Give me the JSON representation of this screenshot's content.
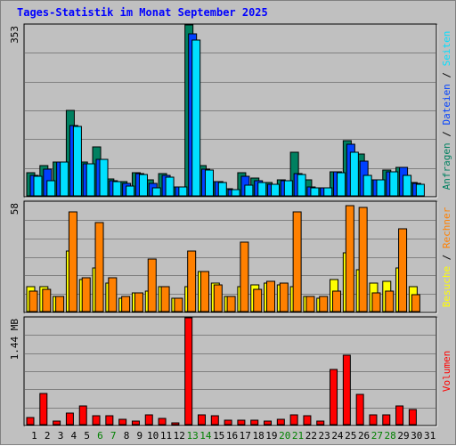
{
  "title": "Tages-Statistik im Monat September 2025",
  "colors": {
    "anfragen": "#008060",
    "dateien": "#0040ff",
    "seiten": "#00e0ff",
    "besuche": "#ffff00",
    "rechner": "#ff8000",
    "volumen": "#ff0000",
    "weekend": "#008000",
    "weekday": "#000000",
    "separator": "#000000"
  },
  "chart_data": [
    {
      "type": "bar",
      "panel": "hits",
      "ytick_label": "353",
      "ymax": 353,
      "legend": [
        "Anfragen",
        "/",
        "Dateien",
        "/",
        "Seiten"
      ],
      "legend_colors": [
        "anfragen",
        "separator",
        "dateien",
        "separator",
        "seiten"
      ],
      "categories": [
        "1",
        "2",
        "3",
        "4",
        "5",
        "6",
        "7",
        "8",
        "9",
        "10",
        "11",
        "12",
        "13",
        "14",
        "15",
        "16",
        "17",
        "18",
        "19",
        "20",
        "21",
        "22",
        "23",
        "24",
        "25",
        "26",
        "27",
        "28",
        "29",
        "30",
        "31"
      ],
      "weekend_days": [
        "6",
        "7",
        "13",
        "14",
        "20",
        "21",
        "27",
        "28"
      ],
      "series": [
        {
          "name": "Anfragen",
          "color": "anfragen",
          "values": [
            47,
            63,
            69,
            176,
            70,
            101,
            35,
            30,
            48,
            34,
            46,
            18,
            353,
            63,
            29,
            14,
            48,
            36,
            28,
            33,
            90,
            33,
            17,
            50,
            114,
            86,
            33,
            54,
            58,
            28,
            0
          ]
        },
        {
          "name": "Dateien",
          "color": "dateien",
          "values": [
            43,
            55,
            69,
            146,
            67,
            75,
            32,
            25,
            46,
            26,
            42,
            18,
            335,
            56,
            29,
            13,
            40,
            32,
            24,
            32,
            46,
            19,
            16,
            50,
            106,
            72,
            33,
            50,
            58,
            25,
            0
          ]
        },
        {
          "name": "Seiten",
          "color": "seiten",
          "values": [
            40,
            32,
            69,
            143,
            66,
            75,
            30,
            21,
            44,
            16,
            38,
            18,
            322,
            54,
            28,
            13,
            22,
            28,
            24,
            31,
            44,
            17,
            16,
            47,
            90,
            42,
            33,
            50,
            43,
            24,
            0
          ]
        }
      ]
    },
    {
      "type": "bar",
      "panel": "visits",
      "ytick_label": "58",
      "ymax": 58,
      "legend": [
        "Besuche",
        "/",
        "Rechner"
      ],
      "legend_colors": [
        "besuche",
        "separator",
        "rechner"
      ],
      "categories": [
        "1",
        "2",
        "3",
        "4",
        "5",
        "6",
        "7",
        "8",
        "9",
        "10",
        "11",
        "12",
        "13",
        "14",
        "15",
        "16",
        "17",
        "18",
        "19",
        "20",
        "21",
        "22",
        "23",
        "24",
        "25",
        "26",
        "27",
        "28",
        "29",
        "30",
        "31"
      ],
      "series": [
        {
          "name": "Besuche",
          "color": "besuche",
          "values": [
            13,
            13,
            8,
            32,
            17,
            23,
            15,
            7,
            10,
            11,
            13,
            7,
            13,
            21,
            15,
            8,
            13,
            14,
            15,
            14,
            13,
            8,
            7,
            17,
            31,
            22,
            15,
            16,
            23,
            13,
            0
          ]
        },
        {
          "name": "Rechner",
          "color": "rechner",
          "values": [
            11,
            12,
            8,
            53,
            18,
            47,
            18,
            8,
            10,
            28,
            13,
            7,
            32,
            21,
            14,
            8,
            37,
            12,
            16,
            15,
            53,
            8,
            8,
            11,
            56,
            55,
            10,
            11,
            44,
            9,
            0
          ]
        }
      ]
    },
    {
      "type": "bar",
      "panel": "volume",
      "ytick_label": "1.44 MB",
      "ymax": 1.44,
      "legend": [
        "Volumen"
      ],
      "legend_colors": [
        "volumen"
      ],
      "categories": [
        "1",
        "2",
        "3",
        "4",
        "5",
        "6",
        "7",
        "8",
        "9",
        "10",
        "11",
        "12",
        "13",
        "14",
        "15",
        "16",
        "17",
        "18",
        "19",
        "20",
        "21",
        "22",
        "23",
        "24",
        "25",
        "26",
        "27",
        "28",
        "29",
        "30",
        "31"
      ],
      "series": [
        {
          "name": "Volumen",
          "color": "volumen",
          "values": [
            0.09,
            0.42,
            0.05,
            0.16,
            0.25,
            0.12,
            0.12,
            0.07,
            0.05,
            0.13,
            0.08,
            0.02,
            1.44,
            0.13,
            0.12,
            0.06,
            0.06,
            0.06,
            0.05,
            0.07,
            0.13,
            0.12,
            0.05,
            0.74,
            0.93,
            0.41,
            0.13,
            0.13,
            0.25,
            0.2,
            0
          ]
        }
      ]
    }
  ]
}
